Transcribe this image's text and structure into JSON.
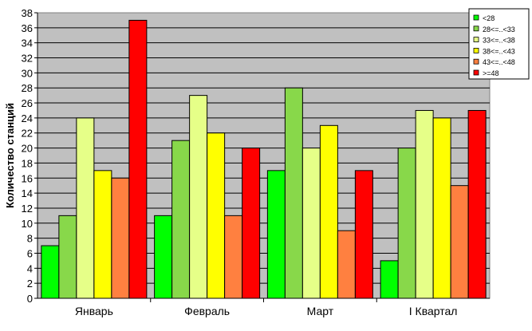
{
  "chart_data": {
    "type": "bar",
    "title": "",
    "xlabel": "",
    "ylabel": "Количество станций",
    "ylim": [
      0,
      38
    ],
    "ytick_step": 2,
    "grid": true,
    "legend_position": "top-right",
    "categories": [
      "Январь",
      "Февраль",
      "Март",
      "I Квартал"
    ],
    "series": [
      {
        "name": "<28",
        "color": "#00ff00",
        "values": [
          7,
          11,
          17,
          5
        ]
      },
      {
        "name": "28<=..<33",
        "color": "#88d84a",
        "values": [
          11,
          21,
          28,
          20
        ]
      },
      {
        "name": "33<=..<38",
        "color": "#e6ff88",
        "values": [
          24,
          27,
          20,
          25
        ]
      },
      {
        "name": "38<=..<43",
        "color": "#ffff00",
        "values": [
          17,
          22,
          23,
          24
        ]
      },
      {
        "name": "43<=..<48",
        "color": "#ff8040",
        "values": [
          16,
          11,
          9,
          15
        ]
      },
      {
        "name": ">=48",
        "color": "#ff0000",
        "values": [
          37,
          20,
          17,
          25
        ]
      }
    ],
    "plot_background": "#c0c0c0"
  }
}
